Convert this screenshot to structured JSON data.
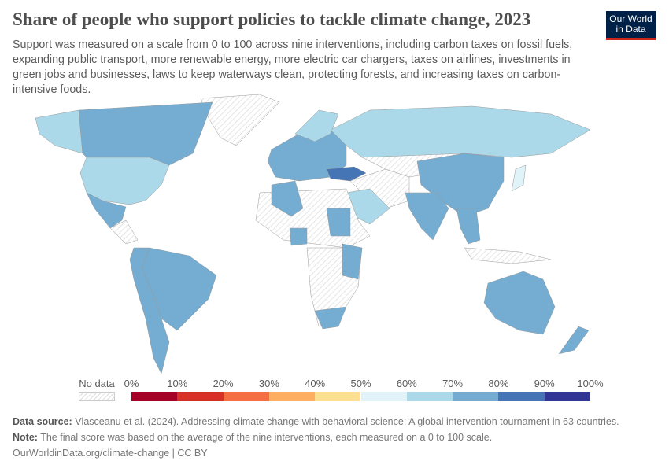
{
  "header": {
    "title": "Share of people who support policies to tackle climate change, 2023",
    "subtitle": "Support was measured on a scale from 0 to 100 across nine interventions, including carbon taxes on fossil fuels, expanding public transport, more renewable energy, more electric car chargers, taxes on airlines, investments in green jobs and businesses, laws to keep waterways clean, protecting forests, and increasing taxes on carbon-intensive foods.",
    "logo": "Our World in Data"
  },
  "legend": {
    "no_data": "No data",
    "ticks": [
      "0%",
      "10%",
      "20%",
      "30%",
      "40%",
      "50%",
      "60%",
      "70%",
      "80%",
      "90%",
      "100%"
    ],
    "colors": [
      "#a50026",
      "#d73027",
      "#f46d43",
      "#fdae61",
      "#fee090",
      "#e0f3f8",
      "#abd9e9",
      "#74add1",
      "#4575b4",
      "#313695"
    ],
    "no_data_color": "#e0e0e0"
  },
  "map": {
    "regions": [
      {
        "name": "United States",
        "bin": "60-70%"
      },
      {
        "name": "Canada",
        "bin": "70-80%"
      },
      {
        "name": "Mexico",
        "bin": "70-80%"
      },
      {
        "name": "Brazil",
        "bin": "70-80%"
      },
      {
        "name": "Russia",
        "bin": "60-70%"
      },
      {
        "name": "China",
        "bin": "70-80%"
      },
      {
        "name": "India",
        "bin": "70-80%"
      },
      {
        "name": "Australia",
        "bin": "70-80%"
      },
      {
        "name": "Turkey",
        "bin": "80-90%"
      },
      {
        "name": "Saudi Arabia",
        "bin": "60-70%"
      },
      {
        "name": "Japan",
        "bin": "50-60%"
      },
      {
        "name": "New Zealand",
        "bin": "70-80%"
      },
      {
        "name": "South Africa",
        "bin": "70-80%"
      },
      {
        "name": "Algeria",
        "bin": "70-80%"
      },
      {
        "name": "Sudan",
        "bin": "70-80%"
      },
      {
        "name": "Nigeria",
        "bin": "70-80%"
      },
      {
        "name": "Kenya",
        "bin": "70-80%"
      }
    ]
  },
  "footer": {
    "source_label": "Data source:",
    "source": "Vlasceanu et al. (2024). Addressing climate change with behavioral science: A global intervention tournament in 63 countries.",
    "note_label": "Note:",
    "note": "The final score was based on the average of the nine interventions, each measured on a 0 to 100 scale.",
    "url": "OurWorldinData.org/climate-change | CC BY"
  }
}
